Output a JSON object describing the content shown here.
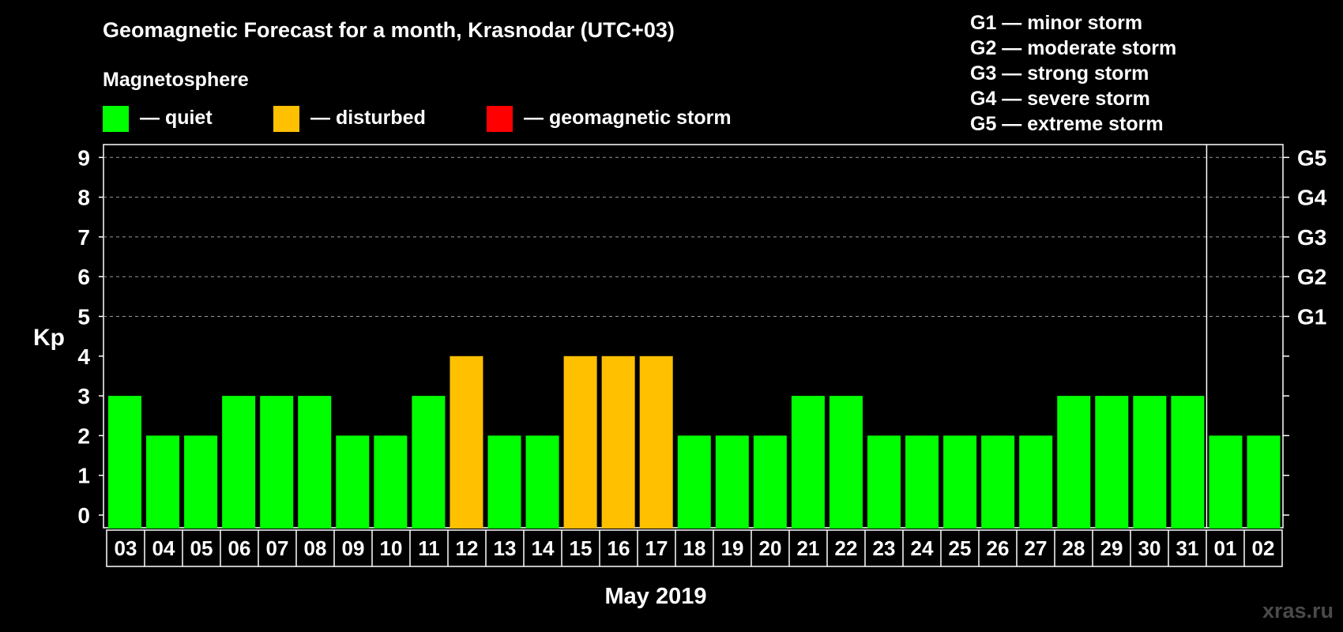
{
  "chart_data": {
    "type": "bar",
    "title": "Geomagnetic Forecast for a month, Krasnodar (UTC+03)",
    "legend_title": "Magnetosphere",
    "legend": [
      {
        "key": "quiet",
        "label": "— quiet",
        "color": "#00ff00"
      },
      {
        "key": "disturbed",
        "label": "— disturbed",
        "color": "#ffc000"
      },
      {
        "key": "storm",
        "label": "— geomagnetic storm",
        "color": "#ff0000"
      }
    ],
    "storm_scale": [
      "G1 — minor storm",
      "G2 — moderate storm",
      "G3 — strong storm",
      "G4 — severe storm",
      "G5 — extreme storm"
    ],
    "ylabel": "Kp",
    "xlabel": "May 2019",
    "ylim": [
      0,
      9
    ],
    "yticks": [
      "0",
      "1",
      "2",
      "3",
      "4",
      "5",
      "6",
      "7",
      "8",
      "9"
    ],
    "right_ticks": [
      {
        "value": 5,
        "label": "G1"
      },
      {
        "value": 6,
        "label": "G2"
      },
      {
        "value": 7,
        "label": "G3"
      },
      {
        "value": 8,
        "label": "G4"
      },
      {
        "value": 9,
        "label": "G5"
      }
    ],
    "grid": "dashed horizontal at Kp 5–9",
    "month_divider_after": "31",
    "categories": [
      "03",
      "04",
      "05",
      "06",
      "07",
      "08",
      "09",
      "10",
      "11",
      "12",
      "13",
      "14",
      "15",
      "16",
      "17",
      "18",
      "19",
      "20",
      "21",
      "22",
      "23",
      "24",
      "25",
      "26",
      "27",
      "28",
      "29",
      "30",
      "31",
      "01",
      "02"
    ],
    "values": [
      3,
      2,
      2,
      3,
      3,
      3,
      2,
      2,
      3,
      4,
      2,
      2,
      4,
      4,
      4,
      2,
      2,
      2,
      3,
      3,
      2,
      2,
      2,
      2,
      2,
      3,
      3,
      3,
      3,
      2,
      2
    ],
    "status": [
      "quiet",
      "quiet",
      "quiet",
      "quiet",
      "quiet",
      "quiet",
      "quiet",
      "quiet",
      "quiet",
      "disturbed",
      "quiet",
      "quiet",
      "disturbed",
      "disturbed",
      "disturbed",
      "quiet",
      "quiet",
      "quiet",
      "quiet",
      "quiet",
      "quiet",
      "quiet",
      "quiet",
      "quiet",
      "quiet",
      "quiet",
      "quiet",
      "quiet",
      "quiet",
      "quiet",
      "quiet"
    ]
  },
  "watermark": "xras.ru"
}
